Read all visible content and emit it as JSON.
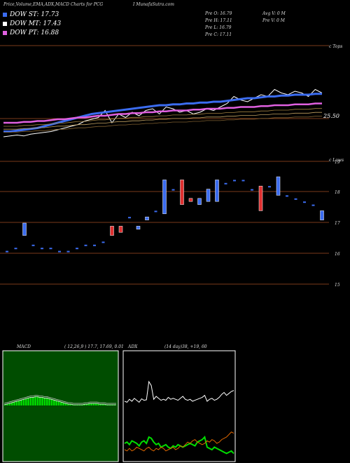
{
  "header": {
    "title": "Price,Volume,EMA,ADX,MACD Charts for PCG",
    "site": "I MunafaSutra.com"
  },
  "legend": [
    {
      "label": "DOW ST: 17.73",
      "color": "#3b6cf0"
    },
    {
      "label": "DOW MT: 17.43",
      "color": "#ffffff"
    },
    {
      "label": "DOW PT: 16.88",
      "color": "#e060e0"
    }
  ],
  "ohlc": {
    "open": "Pre  O: 16.79",
    "high": "Pre  H: 17.11",
    "low": "Pre  L: 16.79",
    "close": "Pre  C: 17.11",
    "avg_vol": "Avg V: 0  M",
    "pre_vol": "Pre  V: 0  M"
  },
  "top_axis": {
    "right_label": "c Tops",
    "price_label": "25.50"
  },
  "candle_axis": {
    "right_label": "c Lows",
    "levels": [
      "19",
      "18",
      "17",
      "16",
      "15"
    ]
  },
  "macd_panel": {
    "label": "MACD",
    "params": "( 12,26,9 ) 17.7,  17.69,  0.01"
  },
  "adx_panel": {
    "label": "ADX",
    "params": "(14  day)38, +19,  60"
  },
  "chart_data": [
    {
      "type": "line",
      "name": "price with EMA bands",
      "series": [
        {
          "values": [
            4,
            5,
            6,
            5,
            7,
            8,
            9,
            10,
            12,
            14,
            16,
            18,
            22,
            24,
            26,
            34,
            20,
            30,
            26,
            32,
            28,
            34,
            36,
            30,
            38,
            36,
            32,
            34,
            30,
            32,
            36,
            34,
            38,
            42,
            50,
            46,
            44,
            48,
            52,
            50,
            58,
            54,
            52,
            56,
            54,
            50,
            58,
            54
          ]
        },
        {
          "values": [
            10,
            10,
            11,
            12,
            13,
            14,
            16,
            18,
            20,
            22,
            24,
            26,
            28,
            30,
            31,
            32,
            33,
            34,
            35,
            36,
            37,
            38,
            39,
            40,
            40,
            41,
            41,
            42,
            42,
            43,
            43,
            44,
            44,
            45,
            46,
            47,
            48,
            48,
            49,
            50,
            50,
            51,
            51,
            52,
            52,
            52,
            53,
            53
          ]
        },
        {
          "values": [
            20,
            20,
            20,
            21,
            21,
            22,
            22,
            23,
            24,
            24,
            25,
            26,
            26,
            27,
            28,
            28,
            29,
            30,
            30,
            31,
            31,
            32,
            32,
            33,
            33,
            34,
            34,
            34,
            35,
            35,
            36,
            36,
            36,
            37,
            37,
            38,
            38,
            38,
            39,
            39,
            40,
            40,
            40,
            41,
            41,
            41,
            42,
            42
          ]
        }
      ]
    },
    {
      "type": "bar",
      "name": "volume-price candles",
      "candles": [
        {
          "o": 16.1,
          "c": 16.1,
          "col": "#3b6cf0"
        },
        {
          "o": 16.2,
          "c": 16.2,
          "col": "#3b6cf0"
        },
        {
          "o": 17.0,
          "c": 16.6,
          "col": "#3b6cf0"
        },
        {
          "o": 16.3,
          "c": 16.3,
          "col": "#3b6cf0"
        },
        {
          "o": 16.2,
          "c": 16.2,
          "col": "#3b6cf0"
        },
        {
          "o": 16.2,
          "c": 16.2,
          "col": "#3b6cf0"
        },
        {
          "o": 16.1,
          "c": 16.1,
          "col": "#3b6cf0"
        },
        {
          "o": 16.1,
          "c": 16.1,
          "col": "#3b6cf0"
        },
        {
          "o": 16.2,
          "c": 16.2,
          "col": "#3b6cf0"
        },
        {
          "o": 16.3,
          "c": 16.3,
          "col": "#3b6cf0"
        },
        {
          "o": 16.3,
          "c": 16.3,
          "col": "#3b6cf0"
        },
        {
          "o": 16.4,
          "c": 16.4,
          "col": "#3b6cf0"
        },
        {
          "o": 16.6,
          "c": 16.9,
          "col": "#e03030"
        },
        {
          "o": 16.7,
          "c": 16.9,
          "col": "#e03030"
        },
        {
          "o": 17.2,
          "c": 17.2,
          "col": "#3b6cf0"
        },
        {
          "o": 16.8,
          "c": 16.9,
          "col": "#3b6cf0"
        },
        {
          "o": 17.1,
          "c": 17.2,
          "col": "#3b6cf0"
        },
        {
          "o": 17.4,
          "c": 17.4,
          "col": "#3b6cf0"
        },
        {
          "o": 18.4,
          "c": 17.3,
          "col": "#3b6cf0"
        },
        {
          "o": 18.1,
          "c": 18.1,
          "col": "#3b6cf0"
        },
        {
          "o": 18.4,
          "c": 17.6,
          "col": "#e03030"
        },
        {
          "o": 17.8,
          "c": 17.7,
          "col": "#e03030"
        },
        {
          "o": 17.8,
          "c": 17.6,
          "col": "#3b6cf0"
        },
        {
          "o": 18.1,
          "c": 17.7,
          "col": "#3b6cf0"
        },
        {
          "o": 18.4,
          "c": 17.7,
          "col": "#3b6cf0"
        },
        {
          "o": 18.3,
          "c": 18.3,
          "col": "#3b6cf0"
        },
        {
          "o": 18.4,
          "c": 18.4,
          "col": "#3b6cf0"
        },
        {
          "o": 18.4,
          "c": 18.4,
          "col": "#3b6cf0"
        },
        {
          "o": 18.1,
          "c": 18.1,
          "col": "#3b6cf0"
        },
        {
          "o": 18.2,
          "c": 17.4,
          "col": "#e03030"
        },
        {
          "o": 18.2,
          "c": 18.2,
          "col": "#3b6cf0"
        },
        {
          "o": 18.5,
          "c": 17.9,
          "col": "#3b6cf0"
        },
        {
          "o": 17.9,
          "c": 17.9,
          "col": "#3b6cf0"
        },
        {
          "o": 17.8,
          "c": 17.8,
          "col": "#3b6cf0"
        },
        {
          "o": 17.7,
          "c": 17.7,
          "col": "#3b6cf0"
        },
        {
          "o": 17.6,
          "c": 17.6,
          "col": "#3b6cf0"
        },
        {
          "o": 17.4,
          "c": 17.1,
          "col": "#3b6cf0"
        }
      ],
      "ylim": [
        14.6,
        19.3
      ]
    },
    {
      "type": "area",
      "name": "MACD histogram",
      "values": [
        1,
        2,
        3,
        4,
        5,
        6,
        7,
        8,
        9,
        10,
        11,
        12,
        12,
        13,
        13,
        12,
        12,
        11,
        11,
        10,
        9,
        8,
        7,
        6,
        5,
        4,
        3,
        2,
        2,
        1,
        1,
        1,
        1,
        1,
        2,
        2,
        3,
        3,
        3,
        3,
        2,
        2,
        2,
        1,
        1,
        1,
        1,
        1
      ]
    },
    {
      "type": "line",
      "name": "ADX",
      "series": [
        {
          "values": [
            40,
            38,
            44,
            40,
            46,
            42,
            38,
            45,
            42,
            43,
            80,
            72,
            44,
            50,
            46,
            42,
            44,
            42,
            48,
            44,
            46,
            44,
            42,
            46,
            50,
            44,
            42,
            44,
            40,
            42,
            44,
            46,
            48,
            52,
            40,
            44,
            46,
            42,
            44,
            48,
            54,
            58,
            52,
            56,
            60,
            62
          ]
        },
        {
          "values": [
            20,
            22,
            18,
            24,
            22,
            20,
            16,
            22,
            24,
            20,
            30,
            28,
            22,
            18,
            20,
            14,
            16,
            18,
            14,
            12,
            16,
            14,
            18,
            16,
            14,
            16,
            18,
            20,
            18,
            16,
            22,
            24,
            26,
            30,
            14,
            12,
            10,
            14,
            12,
            10,
            8,
            6,
            4,
            6,
            8,
            4
          ]
        },
        {
          "values": [
            10,
            8,
            12,
            8,
            10,
            14,
            12,
            10,
            8,
            12,
            14,
            10,
            8,
            12,
            10,
            14,
            12,
            8,
            10,
            12,
            14,
            10,
            12,
            16,
            14,
            18,
            22,
            20,
            24,
            26,
            22,
            20,
            18,
            20,
            24,
            22,
            26,
            24,
            20,
            22,
            26,
            28,
            30,
            34,
            38,
            36
          ]
        }
      ]
    }
  ]
}
